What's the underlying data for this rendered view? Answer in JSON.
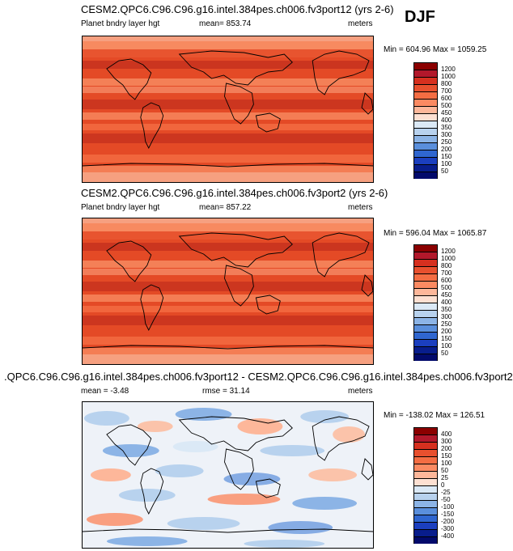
{
  "season": "DJF",
  "panels": [
    {
      "title": "CESM2.QPC6.C96.C96.g16.intel.384pes.ch006.fv3port12 (yrs 2-6)",
      "left_label": "Planet bndry layer hgt",
      "mid_label": "mean= 853.74",
      "right_label": "meters",
      "minmax": "Min = 604.96 Max = 1059.25",
      "levels": [
        "1200",
        "1000",
        "800",
        "700",
        "600",
        "500",
        "450",
        "400",
        "350",
        "300",
        "250",
        "200",
        "150",
        "100",
        "50"
      ],
      "colors": [
        "#8b0000",
        "#b2182b",
        "#d6301f",
        "#e8502e",
        "#f46d43",
        "#fb8a62",
        "#fdb79a",
        "#fde0d2",
        "#dbe9f6",
        "#b8d2ee",
        "#8cb4e6",
        "#5a8fdc",
        "#2f66d0",
        "#1b3fbf",
        "#081d8c",
        "#020a6b"
      ]
    },
    {
      "title": "CESM2.QPC6.C96.C96.g16.intel.384pes.ch006.fv3port2 (yrs 2-6)",
      "left_label": "Planet bndry layer hgt",
      "mid_label": "mean= 857.22",
      "right_label": "meters",
      "minmax": "Min = 596.04 Max = 1065.87",
      "levels": [
        "1200",
        "1000",
        "800",
        "700",
        "600",
        "500",
        "450",
        "400",
        "350",
        "300",
        "250",
        "200",
        "150",
        "100",
        "50"
      ],
      "colors": [
        "#8b0000",
        "#b2182b",
        "#d6301f",
        "#e8502e",
        "#f46d43",
        "#fb8a62",
        "#fdb79a",
        "#fde0d2",
        "#dbe9f6",
        "#b8d2ee",
        "#8cb4e6",
        "#5a8fdc",
        "#2f66d0",
        "#1b3fbf",
        "#081d8c",
        "#020a6b"
      ]
    },
    {
      "title": ".QPC6.C96.C96.g16.intel.384pes.ch006.fv3port12 - CESM2.QPC6.C96.C96.g16.intel.384pes.ch006.fv3port2",
      "left_label": "mean = -3.48",
      "mid_label": "rmse = 31.14",
      "right_label": "meters",
      "minmax": "Min = -138.02 Max = 126.51",
      "levels": [
        "400",
        "300",
        "200",
        "150",
        "100",
        "50",
        "25",
        "0",
        "-25",
        "-50",
        "-100",
        "-150",
        "-200",
        "-300",
        "-400"
      ],
      "colors": [
        "#8b0000",
        "#b2182b",
        "#d6301f",
        "#e8502e",
        "#f46d43",
        "#fb8a62",
        "#fdb79a",
        "#fde0d2",
        "#dbe9f6",
        "#b8d2ee",
        "#8cb4e6",
        "#5a8fdc",
        "#2f66d0",
        "#1b3fbf",
        "#081d8c",
        "#020a6b"
      ]
    }
  ]
}
